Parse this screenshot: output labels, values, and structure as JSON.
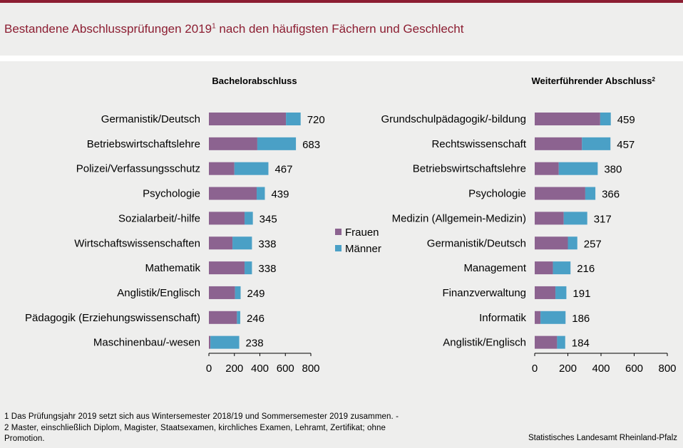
{
  "header": {
    "title": "Bestandene Abschlussprüfungen 2019",
    "title_sup": "1",
    "title_rest": " nach den häufigsten Fächern und Geschlecht"
  },
  "colors": {
    "accent": "#8c1e32",
    "frauen": "#8c6390",
    "maenner": "#4aa0c6"
  },
  "chart_data": [
    {
      "type": "bar",
      "orientation": "horizontal",
      "stacked": true,
      "title": "Bachelorabschluss",
      "categories": [
        "Germanistik/Deutsch",
        "Betriebswirtschaftslehre",
        "Polizei/Verfassungsschutz",
        "Psychologie",
        "Sozialarbeit/-hilfe",
        "Wirtschaftswissenschaften",
        "Mathematik",
        "Anglistik/Englisch",
        "Pädagogik (Erziehungswissenschaft)",
        "Maschinenbau/-wesen"
      ],
      "series": [
        {
          "name": "Frauen",
          "values": [
            605,
            380,
            200,
            375,
            280,
            185,
            280,
            205,
            220,
            12
          ]
        },
        {
          "name": "Männer",
          "values": [
            115,
            303,
            267,
            64,
            65,
            153,
            58,
            44,
            26,
            226
          ]
        }
      ],
      "totals": [
        "720",
        "683",
        "467",
        "439",
        "345",
        "338",
        "338",
        "249",
        "246",
        "238"
      ],
      "xlim": [
        0,
        800
      ],
      "xticks": [
        "0",
        "200",
        "400",
        "600",
        "800"
      ]
    },
    {
      "type": "bar",
      "orientation": "horizontal",
      "stacked": true,
      "title": "Weiterführender Abschluss",
      "title_sup": "2",
      "categories": [
        "Grundschulpädagogik/-bildung",
        "Rechtswissenschaft",
        "Betriebswirtschaftslehre",
        "Psychologie",
        "Medizin (Allgemein-Medizin)",
        "Germanistik/Deutsch",
        "Management",
        "Finanzverwaltung",
        "Informatik",
        "Anglistik/Englisch"
      ],
      "series": [
        {
          "name": "Frauen",
          "values": [
            395,
            285,
            145,
            305,
            175,
            200,
            110,
            125,
            35,
            135
          ]
        },
        {
          "name": "Männer",
          "values": [
            64,
            172,
            235,
            61,
            142,
            57,
            106,
            66,
            151,
            49
          ]
        }
      ],
      "totals": [
        "459",
        "457",
        "380",
        "366",
        "317",
        "257",
        "216",
        "191",
        "186",
        "184"
      ],
      "xlim": [
        0,
        800
      ],
      "xticks": [
        "0",
        "200",
        "400",
        "600",
        "800"
      ]
    }
  ],
  "legend": {
    "placement": "center",
    "items": [
      "Frauen",
      "Männer"
    ]
  },
  "footnotes": [
    "1 Das Prüfungsjahr 2019 setzt sich aus Wintersemester 2018/19 und Sommersemester 2019 zusammen. -",
    "2 Master, einschließlich Diplom, Magister, Staatsexamen, kirchliches Examen, Lehramt, Zertifikat; ohne",
    "Promotion."
  ],
  "source": "Statistisches Landesamt Rheinland-Pfalz"
}
